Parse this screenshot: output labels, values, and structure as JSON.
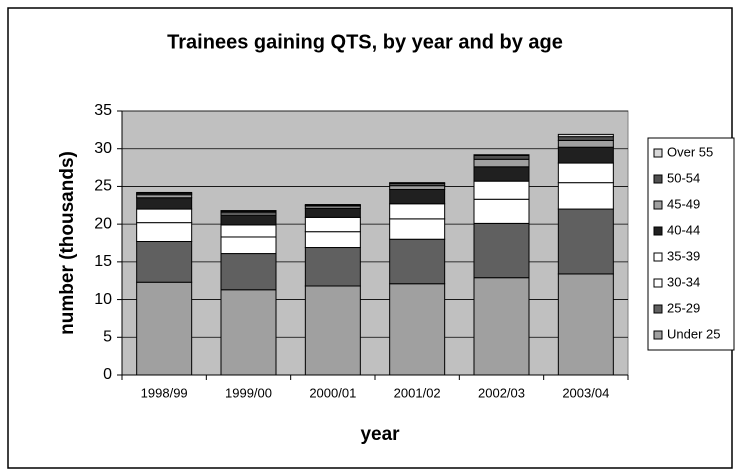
{
  "chart_data": {
    "type": "stacked_bar",
    "title": "Trainees gaining QTS, by year and by age",
    "x_label": "year",
    "y_label": "number (thousands)",
    "categories": [
      "1998/99",
      "1999/00",
      "2000/01",
      "2001/02",
      "2002/03",
      "2003/04"
    ],
    "series": [
      {
        "name": "Under 25",
        "color": "#a0a0a0",
        "values": [
          12.3,
          11.3,
          11.8,
          12.1,
          12.9,
          13.4
        ]
      },
      {
        "name": "25-29",
        "color": "#606060",
        "values": [
          5.4,
          4.8,
          5.1,
          5.9,
          7.2,
          8.6
        ]
      },
      {
        "name": "30-34",
        "color": "#ffffff",
        "values": [
          2.5,
          2.2,
          2.1,
          2.7,
          3.2,
          3.5
        ]
      },
      {
        "name": "35-39",
        "color": "#ffffff",
        "values": [
          1.8,
          1.6,
          1.9,
          2.0,
          2.4,
          2.6
        ]
      },
      {
        "name": "40-44",
        "color": "#202020",
        "values": [
          1.5,
          1.3,
          1.2,
          1.9,
          1.9,
          2.1
        ]
      },
      {
        "name": "45-49",
        "color": "#a0a0a0",
        "values": [
          0.4,
          0.3,
          0.3,
          0.5,
          1.0,
          0.9
        ]
      },
      {
        "name": "50-54",
        "color": "#505050",
        "values": [
          0.2,
          0.2,
          0.1,
          0.3,
          0.5,
          0.5
        ]
      },
      {
        "name": "Over 55",
        "color": "#d8d8d8",
        "values": [
          0.1,
          0.1,
          0.1,
          0.1,
          0.1,
          0.3
        ]
      }
    ],
    "ylim": [
      0,
      35
    ],
    "yticks": [
      0,
      5,
      10,
      15,
      20,
      25,
      30,
      35
    ],
    "grid": true,
    "legend": "right",
    "plot_background": "#c0c0c0"
  }
}
